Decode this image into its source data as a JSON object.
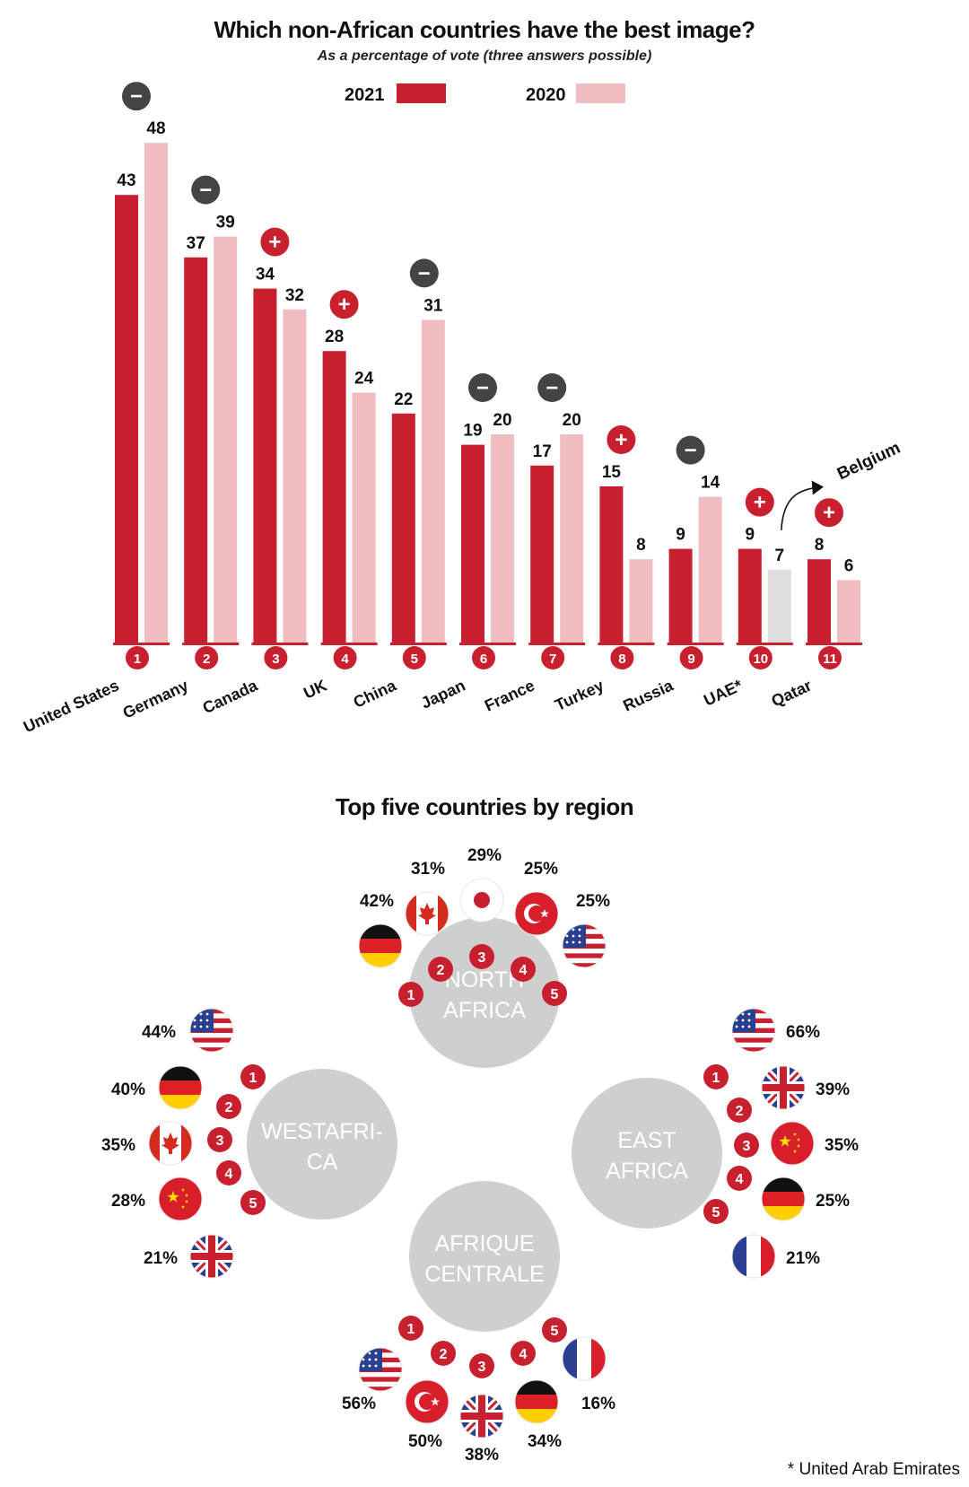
{
  "chart_data": [
    {
      "type": "bar",
      "title": "Which non-African countries have the best image?",
      "subtitle": "As a percentage of vote (three answers possible)",
      "categories": [
        "United States",
        "Germany",
        "Canada",
        "UK",
        "China",
        "Japan",
        "France",
        "Turkey",
        "Russia",
        "UAE*",
        "Qatar"
      ],
      "ranks": [
        "1",
        "2",
        "3",
        "4",
        "5",
        "6",
        "7",
        "8",
        "9",
        "10",
        "11"
      ],
      "series": [
        {
          "name": "2021",
          "values": [
            43,
            37,
            34,
            28,
            22,
            19,
            17,
            15,
            9,
            9,
            8
          ],
          "color": "#c8202f"
        },
        {
          "name": "2020",
          "values": [
            48,
            39,
            32,
            24,
            31,
            20,
            20,
            8,
            14,
            7,
            6
          ],
          "color": "#f0bcc0"
        }
      ],
      "changes": [
        "−",
        "−",
        "+",
        "+",
        "−",
        "−",
        "−",
        "+",
        "−",
        "+",
        "+"
      ],
      "highlight": {
        "index": 9,
        "series": 1,
        "color": "#dedede",
        "label": "Belgium"
      },
      "ylim": [
        0,
        50
      ],
      "legend": "top-center",
      "grid": false
    },
    {
      "type": "table",
      "title": "Top five countries by region",
      "regions": [
        {
          "name_lines": [
            "NORTH",
            "AFRICA"
          ],
          "ranks": [
            "1",
            "2",
            "3",
            "4",
            "5"
          ],
          "flags": [
            "germany",
            "canada",
            "japan",
            "turkey",
            "usa"
          ],
          "values": [
            "42%",
            "31%",
            "29%",
            "25%",
            "25%"
          ]
        },
        {
          "name_lines": [
            "WESTAFRI-",
            "CA"
          ],
          "ranks": [
            "1",
            "2",
            "3",
            "4",
            "5"
          ],
          "flags": [
            "usa",
            "germany",
            "canada",
            "china",
            "uk"
          ],
          "values": [
            "44%",
            "40%",
            "35%",
            "28%",
            "21%"
          ]
        },
        {
          "name_lines": [
            "EAST",
            "AFRICA"
          ],
          "ranks": [
            "1",
            "2",
            "3",
            "4",
            "5"
          ],
          "flags": [
            "usa",
            "uk",
            "china",
            "germany",
            "france"
          ],
          "values": [
            "66%",
            "39%",
            "35%",
            "25%",
            "21%"
          ]
        },
        {
          "name_lines": [
            "AFRIQUE",
            "CENTRALE"
          ],
          "ranks": [
            "1",
            "2",
            "3",
            "4",
            "5"
          ],
          "flags": [
            "usa",
            "turkey",
            "uk",
            "germany",
            "france"
          ],
          "values": [
            "56%",
            "50%",
            "38%",
            "34%",
            "16%"
          ]
        }
      ]
    }
  ],
  "footnote": "* United Arab Emirates",
  "colors": {
    "accent": "#c8202f",
    "light": "#f0bcc0",
    "dark_badge": "#444444",
    "region_circle": "#cfcfcf"
  }
}
